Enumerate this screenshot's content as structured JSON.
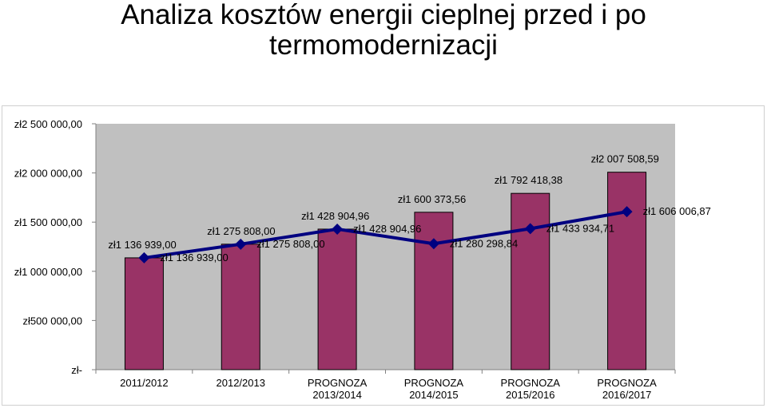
{
  "title_lines": [
    "Analiza kosztów energii cieplnej przed i po",
    "termomodernizacji"
  ],
  "colors": {
    "plot_background": "#c0c0c0",
    "bar_fill": "#993366",
    "line": "#000080",
    "axis": "#808080",
    "text": "#000000"
  },
  "chart_data": {
    "type": "bar",
    "title": "Analiza kosztów energii cieplnej przed i po termomodernizacji",
    "categories": [
      "2011/2012",
      "2012/2013",
      "PROGNOZA\n2013/2014",
      "PROGNOZA\n2014/2015",
      "PROGNOZA\n2015/2016",
      "PROGNOZA\n2016/2017"
    ],
    "ylim": [
      0,
      2500000
    ],
    "y_ticks": [
      0,
      500000,
      1000000,
      1500000,
      2000000,
      2500000
    ],
    "y_tick_labels": [
      "zł-",
      "zł500 000,00",
      "zł1 000 000,00",
      "zł1 500 000,00",
      "zł2 000 000,00",
      "zł2 500 000,00"
    ],
    "grid": false,
    "legend": "none",
    "series": [
      {
        "type": "bar",
        "values": [
          1136939.0,
          1275808.0,
          1428904.96,
          1600373.56,
          1792418.38,
          2007508.59
        ],
        "data_labels": [
          "zł1 136 939,00",
          "zł1 275 808,00",
          "zł1 428 904,96",
          "zł1 600 373,56",
          "zł1 792 418,38",
          "zł2 007 508,59"
        ]
      },
      {
        "type": "line",
        "values": [
          1136939.0,
          1275808.0,
          1428904.96,
          1280298.84,
          1433934.71,
          1606006.87
        ],
        "data_labels": [
          "zł1 136 939,00",
          "zł1 275 808,00",
          "zł1 428 904,96",
          "zł1 280 298,84",
          "zł1 433 934,71",
          "zł1 606 006,87"
        ]
      }
    ]
  }
}
